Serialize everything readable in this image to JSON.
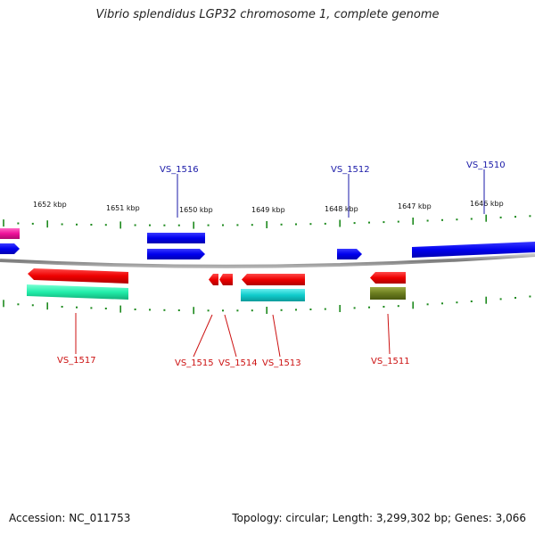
{
  "title": "Vibrio splendidus LGP32 chromosome 1, complete genome",
  "footer": {
    "accession": "Accession: NC_011753",
    "stats": "Topology: circular; Length: 3,299,302 bp; Genes: 3,066"
  },
  "colors": {
    "forward_label": "#1a1aa8",
    "reverse_label": "#cc1111",
    "tick": "#1e8a1e",
    "backbone": "#8c8c8c"
  },
  "scale": {
    "unit": "kbp",
    "labels": [
      "1652 kbp",
      "1651 kbp",
      "1650 kbp",
      "1649 kbp",
      "1648 kbp",
      "1647 kbp",
      "1646 kbp"
    ]
  },
  "genes": {
    "forward": [
      {
        "label": "VS_1516"
      },
      {
        "label": "VS_1512"
      },
      {
        "label": "VS_1510"
      }
    ],
    "reverse": [
      {
        "label": "VS_1517"
      },
      {
        "label": "VS_1515"
      },
      {
        "label": "VS_1514"
      },
      {
        "label": "VS_1513"
      },
      {
        "label": "VS_1511"
      }
    ]
  }
}
